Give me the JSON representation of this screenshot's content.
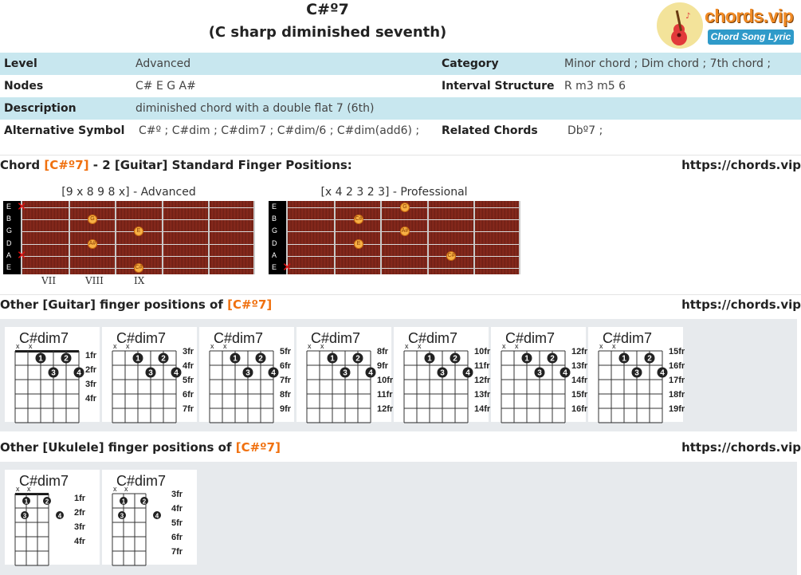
{
  "title": {
    "main": "C#º7",
    "sub": "(C sharp diminished seventh)"
  },
  "logo": {
    "name": "chords.vip",
    "tagline": "Chord Song Lyric"
  },
  "info": {
    "level_label": "Level",
    "level": "Advanced",
    "category_label": "Category",
    "category": "Minor chord ; Dim chord ; 7th chord ;",
    "nodes_label": "Nodes",
    "nodes": "C# E G A#",
    "interval_label": "Interval Structure",
    "interval": "R m3 m5 6",
    "description_label": "Description",
    "description": "diminished chord with a double flat 7 (6th)",
    "alt_label": "Alternative Symbol",
    "alt": "C#º ; C#dim ; C#dim7 ; C#dim/6 ; C#dim(add6) ;",
    "related_label": "Related Chords",
    "related": "Dbº7 ;"
  },
  "sections": {
    "standard": {
      "prefix": "Chord ",
      "chord": "[C#º7]",
      "suffix": " - 2 [Guitar] Standard Finger Positions:",
      "url": "https://chords.vip"
    },
    "other_guitar": {
      "prefix": "Other [Guitar] finger positions of ",
      "chord": "[C#º7]",
      "url": "https://chords.vip"
    },
    "other_ukulele": {
      "prefix": "Other [Ukulele] finger positions of ",
      "chord": "[C#º7]",
      "url": "https://chords.vip"
    }
  },
  "fretboards": [
    {
      "caption": "[9 x 8 9 8 x] - Advanced",
      "strings": [
        "E",
        "B",
        "G",
        "D",
        "A",
        "E"
      ],
      "fret_numbers": [
        "VII",
        "VIII",
        "IX"
      ],
      "muted": [
        "E-high",
        "A"
      ],
      "notes": [
        {
          "string": "B",
          "fret": 8,
          "label": "G"
        },
        {
          "string": "G",
          "fret": 9,
          "label": "E"
        },
        {
          "string": "D",
          "fret": 8,
          "label": "A#"
        },
        {
          "string": "E-low",
          "fret": 9,
          "label": "C#"
        }
      ]
    },
    {
      "caption": "[x 4 2 3 2 3] - Professional",
      "strings": [
        "E",
        "B",
        "G",
        "D",
        "A",
        "E"
      ],
      "muted": [
        "E-low"
      ],
      "notes": [
        {
          "string": "E-high",
          "fret": 3,
          "label": "G"
        },
        {
          "string": "B",
          "fret": 2,
          "label": "C#"
        },
        {
          "string": "G",
          "fret": 3,
          "label": "A#"
        },
        {
          "string": "D",
          "fret": 2,
          "label": "E"
        },
        {
          "string": "A",
          "fret": 4,
          "label": "C#"
        }
      ]
    }
  ],
  "guitar_diagrams": [
    {
      "name": "C#dim7",
      "frets": [
        "1fr",
        "2fr",
        "3fr",
        "4fr"
      ],
      "has_nut": true
    },
    {
      "name": "C#dim7",
      "frets": [
        "3fr",
        "4fr",
        "5fr",
        "6fr",
        "7fr"
      ],
      "has_nut": false
    },
    {
      "name": "C#dim7",
      "frets": [
        "5fr",
        "6fr",
        "7fr",
        "8fr",
        "9fr"
      ],
      "has_nut": false
    },
    {
      "name": "C#dim7",
      "frets": [
        "8fr",
        "9fr",
        "10fr",
        "11fr",
        "12fr"
      ],
      "has_nut": false
    },
    {
      "name": "C#dim7",
      "frets": [
        "10fr",
        "11fr",
        "12fr",
        "13fr",
        "14fr"
      ],
      "has_nut": false
    },
    {
      "name": "C#dim7",
      "frets": [
        "12fr",
        "13fr",
        "14fr",
        "15fr",
        "16fr"
      ],
      "has_nut": false
    },
    {
      "name": "C#dim7",
      "frets": [
        "15fr",
        "16fr",
        "17fr",
        "18fr",
        "19fr"
      ],
      "has_nut": false
    }
  ],
  "ukulele_diagrams": [
    {
      "name": "C#dim7",
      "frets": [
        "1fr",
        "2fr",
        "3fr",
        "4fr"
      ],
      "has_nut": true
    },
    {
      "name": "C#dim7",
      "frets": [
        "3fr",
        "4fr",
        "5fr",
        "6fr",
        "7fr"
      ],
      "has_nut": false
    }
  ],
  "finger_labels": [
    "1",
    "2",
    "3",
    "4"
  ],
  "mute_symbol": "x",
  "colors": {
    "accent": "#f0700e",
    "row_shade": "#c8e7ef",
    "panel": "#e7eaed"
  }
}
